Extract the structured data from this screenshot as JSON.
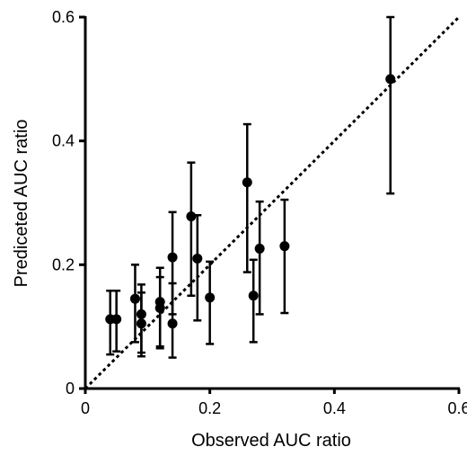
{
  "chart_data": {
    "type": "scatter",
    "xlabel": "Observed AUC ratio",
    "ylabel": "Prediceted AUC ratio",
    "xlim": [
      0,
      0.6
    ],
    "ylim": [
      0,
      0.6
    ],
    "x_ticks": [
      0,
      0.2,
      0.4,
      0.6
    ],
    "y_ticks": [
      0,
      0.2,
      0.4,
      0.6
    ],
    "x_tick_labels": [
      "0",
      "0.2",
      "0.4",
      "0.6"
    ],
    "y_tick_labels": [
      "0",
      "0.2",
      "0.4",
      "0.6"
    ],
    "grid": false,
    "reference_line": {
      "style": "dotted",
      "from": [
        0,
        0
      ],
      "to": [
        0.6,
        0.6
      ],
      "meaning": "line of identity"
    },
    "points": [
      {
        "x": 0.04,
        "y": 0.112,
        "err_low": 0.055,
        "err_high": 0.158
      },
      {
        "x": 0.05,
        "y": 0.112,
        "err_low": 0.06,
        "err_high": 0.158
      },
      {
        "x": 0.08,
        "y": 0.145,
        "err_low": 0.075,
        "err_high": 0.2
      },
      {
        "x": 0.09,
        "y": 0.12,
        "err_low": 0.058,
        "err_high": 0.168
      },
      {
        "x": 0.09,
        "y": 0.105,
        "err_low": 0.052,
        "err_high": 0.155
      },
      {
        "x": 0.12,
        "y": 0.14,
        "err_low": 0.068,
        "err_high": 0.195
      },
      {
        "x": 0.12,
        "y": 0.13,
        "err_low": 0.065,
        "err_high": 0.18
      },
      {
        "x": 0.14,
        "y": 0.212,
        "err_low": 0.12,
        "err_high": 0.285
      },
      {
        "x": 0.14,
        "y": 0.105,
        "err_low": 0.05,
        "err_high": 0.17
      },
      {
        "x": 0.17,
        "y": 0.278,
        "err_low": 0.15,
        "err_high": 0.365
      },
      {
        "x": 0.18,
        "y": 0.21,
        "err_low": 0.11,
        "err_high": 0.28
      },
      {
        "x": 0.2,
        "y": 0.147,
        "err_low": 0.072,
        "err_high": 0.205
      },
      {
        "x": 0.26,
        "y": 0.333,
        "err_low": 0.188,
        "err_high": 0.427
      },
      {
        "x": 0.27,
        "y": 0.15,
        "err_low": 0.075,
        "err_high": 0.208
      },
      {
        "x": 0.28,
        "y": 0.226,
        "err_low": 0.12,
        "err_high": 0.302
      },
      {
        "x": 0.32,
        "y": 0.23,
        "err_low": 0.122,
        "err_high": 0.305
      },
      {
        "x": 0.49,
        "y": 0.5,
        "err_low": 0.315,
        "err_high": 0.6
      }
    ]
  }
}
